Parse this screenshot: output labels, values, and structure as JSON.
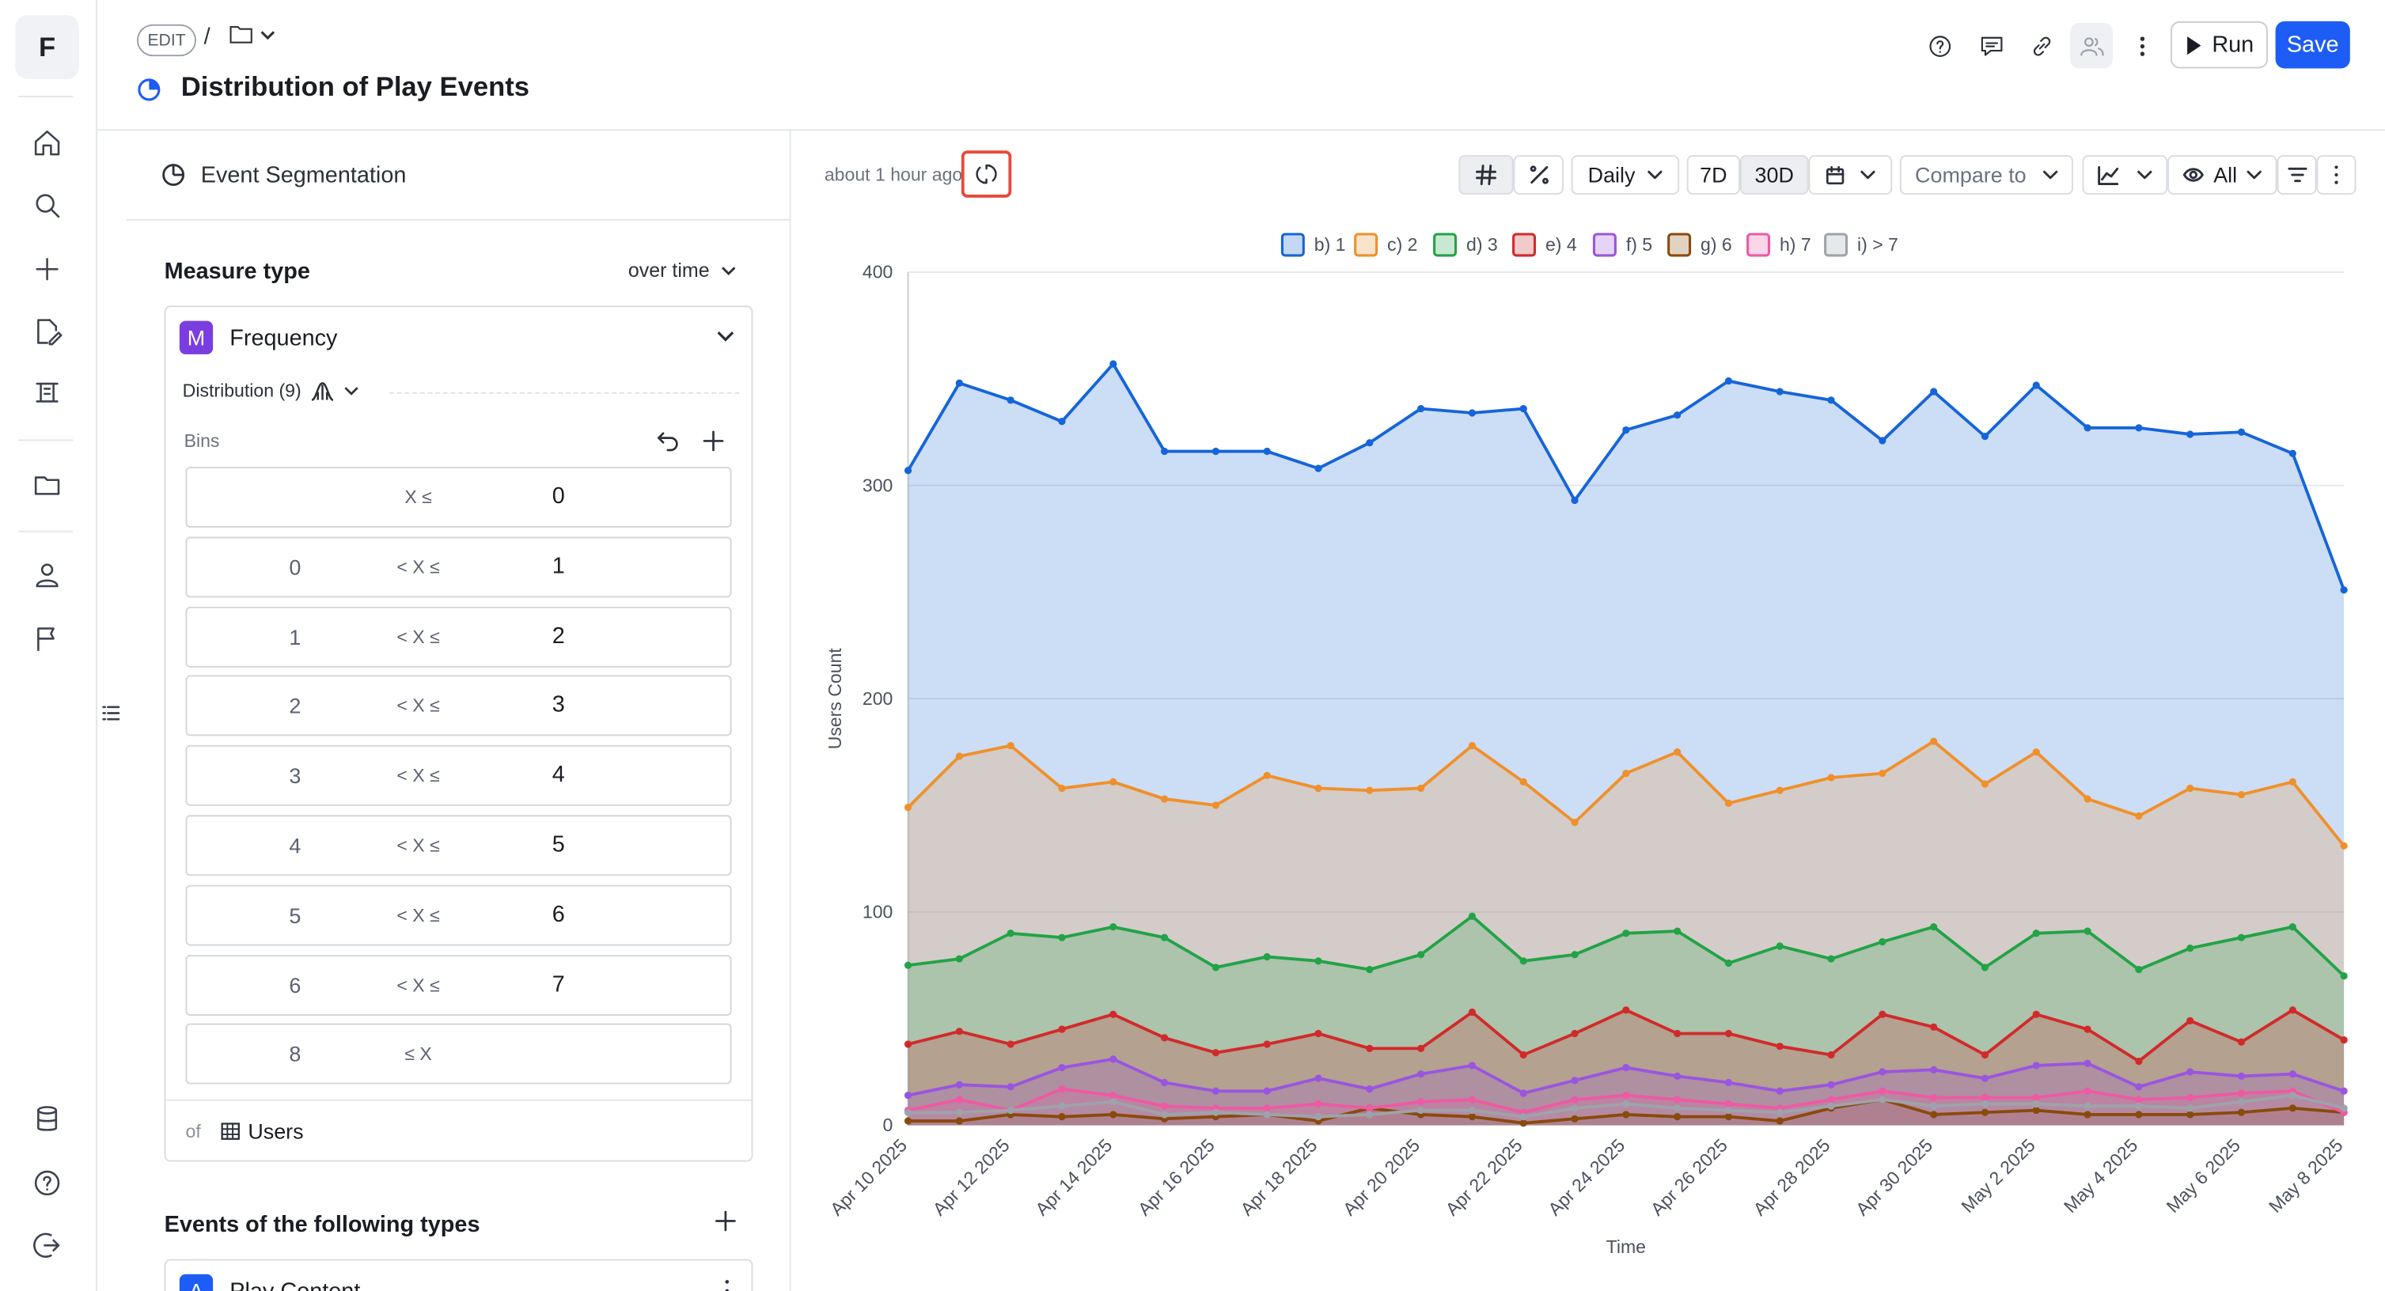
{
  "app": {
    "logo": "F"
  },
  "header": {
    "edit_badge": "EDIT",
    "separator": "/",
    "title": "Distribution of Play Events",
    "run_label": "Run",
    "save_label": "Save"
  },
  "panel": {
    "segmentation_label": "Event Segmentation",
    "measure_type_label": "Measure type",
    "measure_mode": "over time",
    "measure_name": "Frequency",
    "measure_badge": "M",
    "distribution_label": "Distribution (9)",
    "bins_label": "Bins",
    "bins": [
      {
        "lo": "",
        "op": "X ≤",
        "hi": "0"
      },
      {
        "lo": "0",
        "op": "< X ≤",
        "hi": "1"
      },
      {
        "lo": "1",
        "op": "< X ≤",
        "hi": "2"
      },
      {
        "lo": "2",
        "op": "< X ≤",
        "hi": "3"
      },
      {
        "lo": "3",
        "op": "< X ≤",
        "hi": "4"
      },
      {
        "lo": "4",
        "op": "< X ≤",
        "hi": "5"
      },
      {
        "lo": "5",
        "op": "< X ≤",
        "hi": "6"
      },
      {
        "lo": "6",
        "op": "< X ≤",
        "hi": "7"
      },
      {
        "lo": "8",
        "op": "≤ X",
        "hi": ""
      }
    ],
    "of_label": "of",
    "of_value": "Users",
    "events_label": "Events of the following types",
    "event_badge": "A",
    "event_name": "Play Content"
  },
  "toolbar": {
    "updated_text": "about 1 hour ago",
    "granularity": "Daily",
    "range_7d": "7D",
    "range_30d": "30D",
    "compare_placeholder": "Compare to",
    "visibility": "All"
  },
  "colors": {
    "accent": "#1d5cf5",
    "refresh_highlight": "#e84a3b",
    "series": [
      "#1565d8",
      "#f0902a",
      "#22a346",
      "#d12a2a",
      "#9a55e0",
      "#8a4a0c",
      "#ee5aa4",
      "#9ea3ab"
    ]
  },
  "chart_data": {
    "type": "area",
    "stacked": false,
    "xlabel": "Time",
    "ylabel": "Users Count",
    "ylim": [
      0,
      400
    ],
    "yticks": [
      0,
      100,
      200,
      300,
      400
    ],
    "grid": true,
    "legend_position": "top",
    "x": [
      "Apr 10 2025",
      "Apr 11 2025",
      "Apr 12 2025",
      "Apr 13 2025",
      "Apr 14 2025",
      "Apr 15 2025",
      "Apr 16 2025",
      "Apr 17 2025",
      "Apr 18 2025",
      "Apr 19 2025",
      "Apr 20 2025",
      "Apr 21 2025",
      "Apr 22 2025",
      "Apr 23 2025",
      "Apr 24 2025",
      "Apr 25 2025",
      "Apr 26 2025",
      "Apr 27 2025",
      "Apr 28 2025",
      "Apr 29 2025",
      "Apr 30 2025",
      "May 1 2025",
      "May 2 2025",
      "May 3 2025",
      "May 4 2025",
      "May 5 2025",
      "May 6 2025",
      "May 7 2025",
      "May 8 2025"
    ],
    "xtick_labels": [
      "Apr 10 2025",
      "Apr 12 2025",
      "Apr 14 2025",
      "Apr 16 2025",
      "Apr 18 2025",
      "Apr 20 2025",
      "Apr 22 2025",
      "Apr 24 2025",
      "Apr 26 2025",
      "Apr 28 2025",
      "Apr 30 2025",
      "May 2 2025",
      "May 4 2025",
      "May 6 2025",
      "May 8 2025"
    ],
    "series": [
      {
        "name": "b) 1",
        "values": [
          307,
          348,
          340,
          330,
          357,
          316,
          316,
          316,
          308,
          320,
          336,
          334,
          336,
          293,
          326,
          333,
          349,
          344,
          340,
          321,
          344,
          323,
          347,
          327,
          327,
          324,
          325,
          315,
          251
        ]
      },
      {
        "name": "c) 2",
        "values": [
          149,
          173,
          178,
          158,
          161,
          153,
          150,
          164,
          158,
          157,
          158,
          178,
          161,
          142,
          165,
          175,
          151,
          157,
          163,
          165,
          180,
          160,
          175,
          153,
          145,
          158,
          155,
          161,
          131
        ]
      },
      {
        "name": "d) 3",
        "values": [
          75,
          78,
          90,
          88,
          93,
          88,
          74,
          79,
          77,
          73,
          80,
          98,
          77,
          80,
          90,
          91,
          76,
          84,
          78,
          86,
          93,
          74,
          90,
          91,
          73,
          83,
          88,
          93,
          70
        ]
      },
      {
        "name": "e) 4",
        "values": [
          38,
          44,
          38,
          45,
          52,
          41,
          34,
          38,
          43,
          36,
          36,
          53,
          33,
          43,
          54,
          43,
          43,
          37,
          33,
          52,
          46,
          33,
          52,
          45,
          30,
          49,
          39,
          54,
          40
        ]
      },
      {
        "name": "f) 5",
        "values": [
          14,
          19,
          18,
          27,
          31,
          20,
          16,
          16,
          22,
          17,
          24,
          28,
          15,
          21,
          27,
          23,
          20,
          16,
          19,
          25,
          26,
          22,
          28,
          29,
          18,
          25,
          23,
          24,
          16
        ]
      },
      {
        "name": "g) 6",
        "values": [
          2,
          2,
          5,
          4,
          5,
          3,
          4,
          5,
          2,
          8,
          5,
          4,
          1,
          3,
          5,
          4,
          4,
          2,
          8,
          12,
          5,
          6,
          7,
          5,
          5,
          5,
          6,
          8,
          6
        ]
      },
      {
        "name": "h) 7",
        "values": [
          7,
          12,
          7,
          17,
          14,
          9,
          8,
          8,
          10,
          8,
          11,
          12,
          6,
          12,
          14,
          12,
          10,
          8,
          12,
          16,
          13,
          13,
          13,
          16,
          12,
          13,
          15,
          16,
          6
        ]
      },
      {
        "name": "i) > 7",
        "values": [
          6,
          6,
          7,
          9,
          11,
          5,
          6,
          5,
          4,
          5,
          7,
          7,
          4,
          8,
          10,
          8,
          7,
          6,
          9,
          12,
          9,
          10,
          10,
          9,
          9,
          8,
          11,
          14,
          8
        ]
      }
    ]
  }
}
